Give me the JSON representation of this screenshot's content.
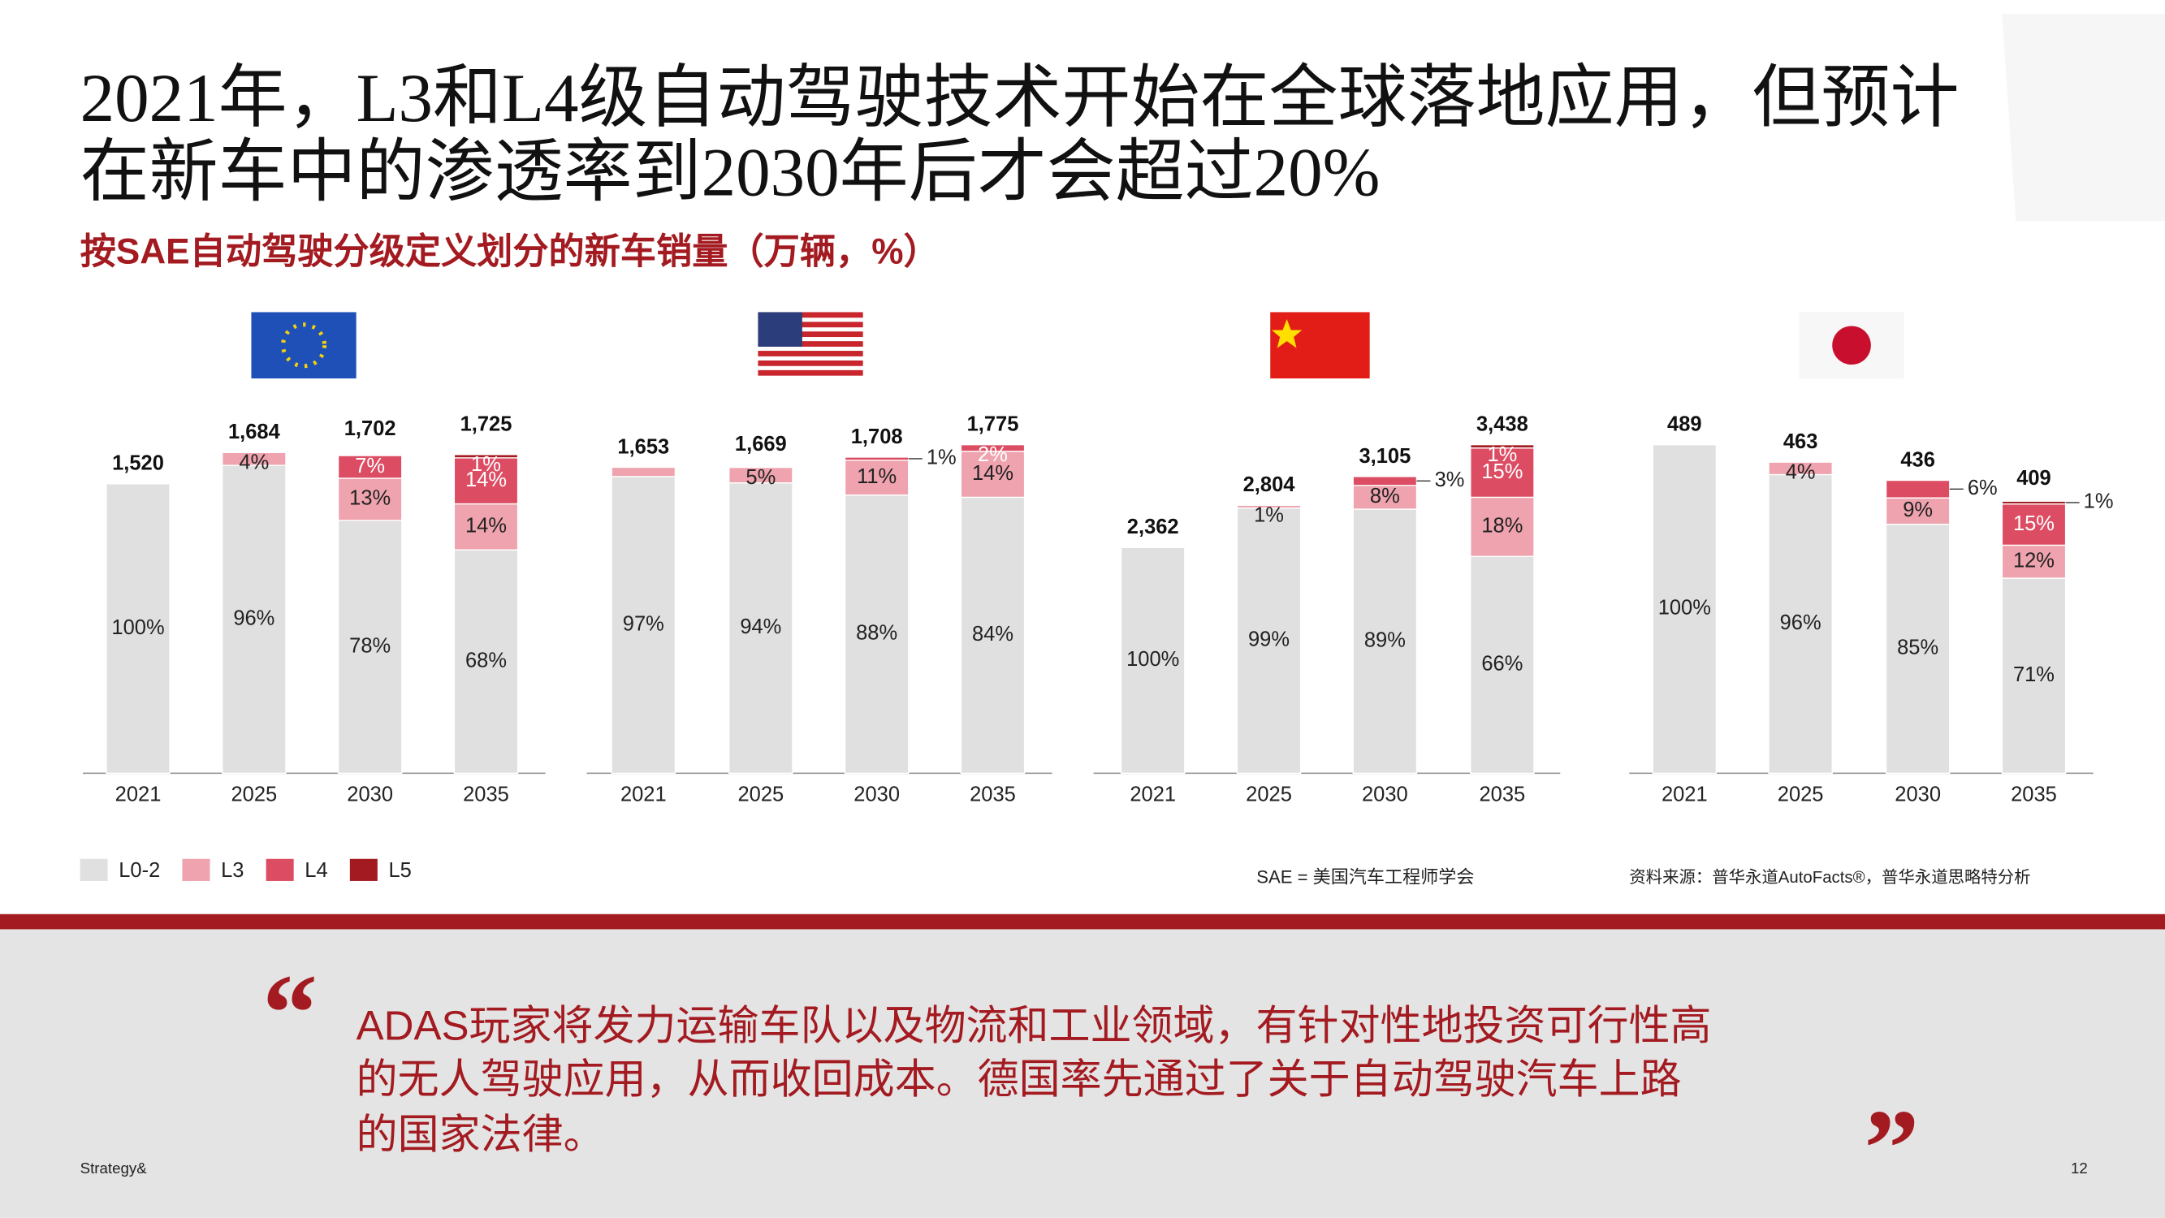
{
  "title": [
    "2021年，L3和L4级自动驾驶技术开始在全球落地应用，但预计",
    "在新车中的渗透率到2030年后才会超过20%"
  ],
  "subtitle": "按SAE自动驾驶分级定义划分的新车销量（万辆，%）",
  "note": "SAE = 美国汽车工程师学会",
  "source": "资料来源：普华永道AutoFacts®，普华永道思略特分析",
  "quote": [
    "ADAS玩家将发力运输车队以及物流和工业领域，有针对性地投资可行性高",
    "的无人驾驶应用，从而收回成本。德国率先通过了关于自动驾驶汽车上路",
    "的国家法律。"
  ],
  "footer": "Strategy&",
  "page_number": "12",
  "chart_data": [
    {
      "type": "stacked_bar",
      "categories": [
        "2021",
        "2025",
        "2030",
        "2035"
      ],
      "total": {
        "values": [
          1520,
          1684,
          1702,
          1725
        ],
        "value_labels": [
          "1,520",
          "1,684",
          "1,702",
          "1,725"
        ]
      },
      "series": [
        {
          "name": "L0-2",
          "color": "#e0e0e0",
          "values": [
            100,
            96,
            78,
            68
          ],
          "value_labels": [
            "100%",
            "96%",
            "78%",
            "68%"
          ]
        },
        {
          "name": "L3",
          "color": "#eea3ae",
          "values": [
            null,
            4,
            13,
            14
          ],
          "value_labels": [
            null,
            "4%",
            "13%",
            "14%"
          ]
        },
        {
          "name": "L4",
          "color": "#dc4d64",
          "values": [
            null,
            null,
            7,
            14
          ],
          "value_labels": [
            null,
            null,
            "7%",
            "14%"
          ]
        },
        {
          "name": "L5",
          "color": "#a31b21",
          "values": [
            null,
            null,
            null,
            1
          ],
          "value_labels": [
            null,
            null,
            null,
            "1%"
          ]
        }
      ]
    },
    {
      "type": "stacked_bar",
      "categories": [
        "2021",
        "2025",
        "2030",
        "2035"
      ],
      "total": {
        "values": [
          1653,
          1669,
          1708,
          1775
        ],
        "value_labels": [
          "1,653",
          "1,669",
          "1,708",
          "1,775"
        ]
      },
      "series": [
        {
          "name": "L0-2",
          "color": "#e0e0e0",
          "values": [
            97,
            94,
            88,
            84
          ],
          "value_labels": [
            "97%",
            "94%",
            "88%",
            "84%"
          ]
        },
        {
          "name": "L3",
          "color": "#eea3ae",
          "values": [
            3,
            5,
            11,
            14
          ],
          "value_labels": [
            null,
            "5%",
            "11%",
            "14%"
          ]
        },
        {
          "name": "L4",
          "color": "#dc4d64",
          "values": [
            null,
            null,
            1,
            2
          ],
          "value_labels": [
            null,
            null,
            "1%",
            "2%"
          ]
        },
        {
          "name": "L5",
          "color": "#a31b21",
          "values": [
            null,
            null,
            null,
            null
          ],
          "value_labels": [
            null,
            null,
            null,
            null
          ]
        }
      ]
    },
    {
      "type": "stacked_bar",
      "categories": [
        "2021",
        "2025",
        "2030",
        "2035"
      ],
      "total": {
        "values": [
          2362,
          2804,
          3105,
          3438
        ],
        "value_labels": [
          "2,362",
          "2,804",
          "3,105",
          "3,438"
        ]
      },
      "series": [
        {
          "name": "L0-2",
          "color": "#e0e0e0",
          "values": [
            100,
            99,
            89,
            66
          ],
          "value_labels": [
            "100%",
            "99%",
            "89%",
            "66%"
          ]
        },
        {
          "name": "L3",
          "color": "#eea3ae",
          "values": [
            null,
            1,
            8,
            18
          ],
          "value_labels": [
            null,
            "1%",
            "8%",
            "18%"
          ]
        },
        {
          "name": "L4",
          "color": "#dc4d64",
          "values": [
            null,
            null,
            3,
            15
          ],
          "value_labels": [
            null,
            null,
            "3%",
            "15%"
          ]
        },
        {
          "name": "L5",
          "color": "#a31b21",
          "values": [
            null,
            null,
            null,
            1
          ],
          "value_labels": [
            null,
            null,
            null,
            "1%"
          ]
        }
      ]
    },
    {
      "type": "stacked_bar",
      "categories": [
        "2021",
        "2025",
        "2030",
        "2035"
      ],
      "total": {
        "values": [
          489,
          463,
          436,
          409
        ],
        "value_labels": [
          "489",
          "463",
          "436",
          "409"
        ]
      },
      "series": [
        {
          "name": "L0-2",
          "color": "#e0e0e0",
          "values": [
            100,
            96,
            85,
            71
          ],
          "value_labels": [
            "100%",
            "96%",
            "85%",
            "71%"
          ]
        },
        {
          "name": "L3",
          "color": "#eea3ae",
          "values": [
            null,
            4,
            9,
            12
          ],
          "value_labels": [
            null,
            "4%",
            "9%",
            "12%"
          ]
        },
        {
          "name": "L4",
          "color": "#dc4d64",
          "values": [
            null,
            null,
            6,
            15
          ],
          "value_labels": [
            null,
            null,
            "6%",
            "15%"
          ]
        },
        {
          "name": "L5",
          "color": "#a31b21",
          "values": [
            null,
            null,
            null,
            1
          ],
          "value_labels": [
            null,
            null,
            null,
            "1%"
          ]
        }
      ]
    }
  ]
}
